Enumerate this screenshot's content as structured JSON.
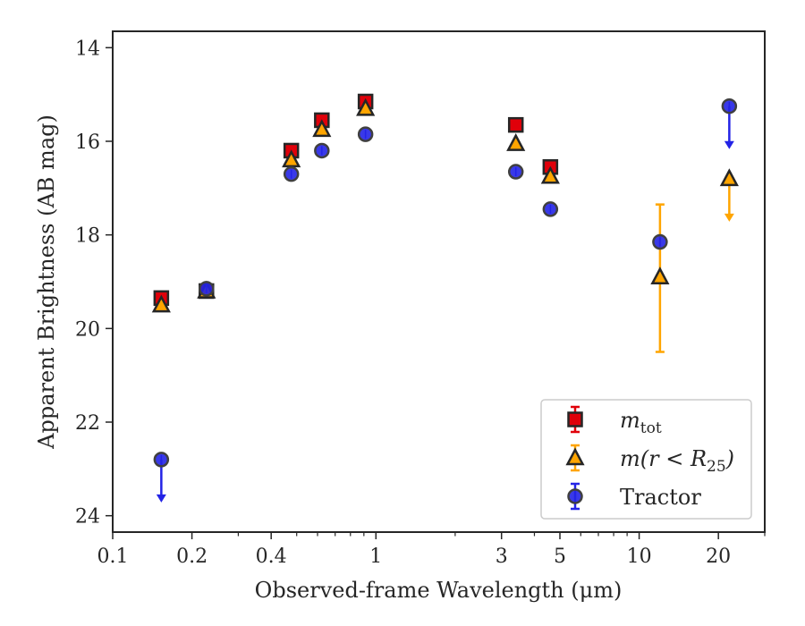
{
  "chart_data": {
    "type": "scatter",
    "title": "",
    "xlabel": "Observed-frame Wavelength (μm)",
    "ylabel": "Apparent Brightness (AB mag)",
    "xscale": "log",
    "xlim": [
      0.1,
      30
    ],
    "ylim": [
      24.35,
      13.65
    ],
    "y_inverted": true,
    "grid": false,
    "legend_position": "lower-right",
    "x_ticks": [
      0.1,
      0.2,
      0.4,
      1,
      3,
      5,
      10,
      20
    ],
    "x_tick_labels": [
      "0.1",
      "0.2",
      "0.4",
      "1",
      "3",
      "5",
      "10",
      "20"
    ],
    "y_ticks": [
      14,
      16,
      18,
      20,
      22,
      24
    ],
    "y_tick_labels": [
      "14",
      "16",
      "18",
      "20",
      "22",
      "24"
    ],
    "series": [
      {
        "name": "m_tot",
        "legend_base": "m",
        "legend_sub": "tot",
        "marker": "square",
        "color": "#ff0000",
        "points": [
          {
            "x": 0.153,
            "y": 19.35
          },
          {
            "x": 0.227,
            "y": 19.2
          },
          {
            "x": 0.477,
            "y": 16.2
          },
          {
            "x": 0.623,
            "y": 15.55
          },
          {
            "x": 0.913,
            "y": 15.15
          },
          {
            "x": 3.4,
            "y": 15.65
          },
          {
            "x": 4.6,
            "y": 16.55
          }
        ]
      },
      {
        "name": "m(r < R25)",
        "legend_base": "m(r < R",
        "legend_sub": "25",
        "legend_tail": ")",
        "marker": "triangle",
        "color": "#ffa500",
        "points": [
          {
            "x": 0.153,
            "y": 19.5
          },
          {
            "x": 0.227,
            "y": 19.2
          },
          {
            "x": 0.477,
            "y": 16.4
          },
          {
            "x": 0.623,
            "y": 15.75
          },
          {
            "x": 0.913,
            "y": 15.3
          },
          {
            "x": 3.4,
            "y": 16.05
          },
          {
            "x": 4.6,
            "y": 16.75
          },
          {
            "x": 12.0,
            "y": 18.9,
            "yerr_low": 17.35,
            "yerr_high": 20.5
          },
          {
            "x": 22.0,
            "y": 16.8,
            "upper_limit": true
          }
        ]
      },
      {
        "name": "Tractor",
        "marker": "circle",
        "color": "#0000ff",
        "points": [
          {
            "x": 0.153,
            "y": 22.8,
            "upper_limit": true
          },
          {
            "x": 0.227,
            "y": 19.15
          },
          {
            "x": 0.477,
            "y": 16.7
          },
          {
            "x": 0.623,
            "y": 16.2
          },
          {
            "x": 0.913,
            "y": 15.85
          },
          {
            "x": 3.4,
            "y": 16.65
          },
          {
            "x": 4.6,
            "y": 17.45
          },
          {
            "x": 12.0,
            "y": 18.15
          },
          {
            "x": 22.0,
            "y": 15.25,
            "upper_limit": true
          }
        ]
      }
    ]
  }
}
